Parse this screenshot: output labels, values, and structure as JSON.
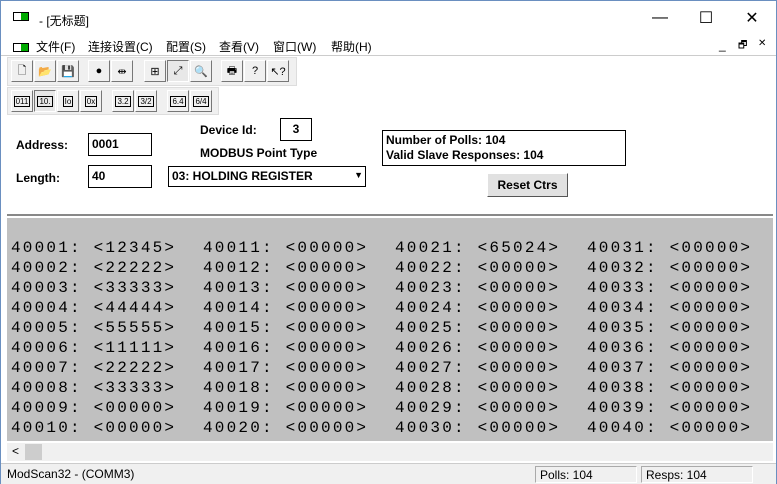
{
  "window": {
    "title": "- [无标题]",
    "minimize": "—",
    "maximize": "☐",
    "close": "✕"
  },
  "menu": [
    "文件(F)",
    "连接设置(C)",
    "配置(S)",
    "查看(V)",
    "窗口(W)",
    "帮助(H)"
  ],
  "mdi_controls": [
    "_",
    "🗗",
    "✕"
  ],
  "toolbar1": [
    {
      "icon": "new-file-icon",
      "g": "🗋"
    },
    {
      "icon": "open-folder-icon",
      "g": "📂"
    },
    {
      "icon": "save-icon",
      "g": "💾"
    },
    {
      "icon": "connect-icon",
      "g": "●"
    },
    {
      "icon": "disconnect-icon",
      "g": "⇹"
    },
    {
      "icon": "tile-icon",
      "g": "⊞"
    },
    {
      "icon": "display-chart-icon",
      "g": "⤢"
    },
    {
      "icon": "monitor-icon",
      "g": "🔍"
    },
    {
      "icon": "print-icon",
      "g": "🖶"
    },
    {
      "icon": "help-icon",
      "g": "?"
    },
    {
      "icon": "context-help-icon",
      "g": "↖?"
    }
  ],
  "toolbar2": [
    "011",
    "10.",
    "Io",
    "0x",
    "3.2",
    "3/2",
    "6.4",
    "6/4"
  ],
  "panel": {
    "address_label": "Address:",
    "address": "0001",
    "length_label": "Length:",
    "length": "40",
    "device_id_label": "Device Id:",
    "device_id": "3",
    "point_type_label": "MODBUS Point Type",
    "point_type": "03: HOLDING REGISTER",
    "polls_line": "Number of Polls: 104",
    "responses_line": "Valid Slave Responses: 104",
    "reset_label": "Reset Ctrs"
  },
  "registers": [
    [
      "40001: <12345>",
      "40002: <22222>",
      "40003: <33333>",
      "40004: <44444>",
      "40005: <55555>",
      "40006: <11111>",
      "40007: <22222>",
      "40008: <33333>",
      "40009: <00000>",
      "40010: <00000>"
    ],
    [
      "40011: <00000>",
      "40012: <00000>",
      "40013: <00000>",
      "40014: <00000>",
      "40015: <00000>",
      "40016: <00000>",
      "40017: <00000>",
      "40018: <00000>",
      "40019: <00000>",
      "40020: <00000>"
    ],
    [
      "40021: <65024>",
      "40022: <00000>",
      "40023: <00000>",
      "40024: <00000>",
      "40025: <00000>",
      "40026: <00000>",
      "40027: <00000>",
      "40028: <00000>",
      "40029: <00000>",
      "40030: <00000>"
    ],
    [
      "40031: <00000>",
      "40032: <00000>",
      "40033: <00000>",
      "40034: <00000>",
      "40035: <00000>",
      "40036: <00000>",
      "40037: <00000>",
      "40038: <00000>",
      "40039: <00000>",
      "40040: <00000>"
    ]
  ],
  "status": {
    "app": "ModScan32 - (COMM3)",
    "polls": "Polls: 104",
    "resps": "Resps: 104"
  }
}
